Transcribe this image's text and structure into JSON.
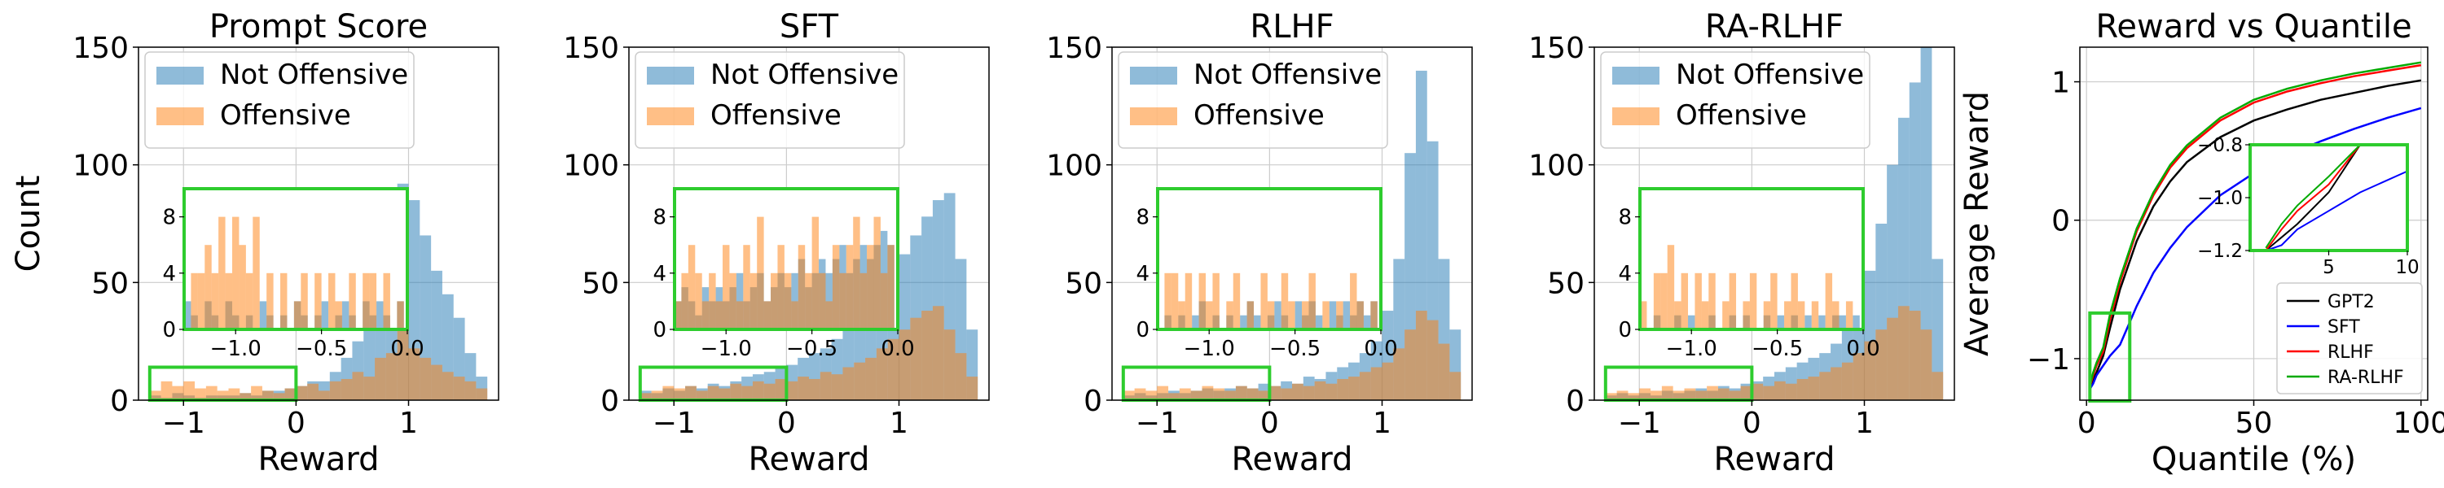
{
  "figure": {
    "colors": {
      "not_offensive": "#1f77b4",
      "offensive": "#ff7f0e",
      "inset_box": "#2ecc2e",
      "grid": "#cccccc"
    }
  },
  "chart_data": [
    {
      "type": "bar",
      "title": "Prompt Score",
      "xlabel": "Reward",
      "ylabel": "Count",
      "xlim": [
        -1.4,
        1.8
      ],
      "ylim": [
        0,
        150
      ],
      "xticks": [
        "−1",
        "0",
        "1"
      ],
      "yticks": [
        "0",
        "50",
        "100",
        "150"
      ],
      "grid": true,
      "legend": {
        "position": "top-left",
        "entries": [
          "Not Offensive",
          "Offensive"
        ]
      },
      "bin_start": -1.3,
      "bin_width": 0.1,
      "series": [
        {
          "name": "Not Offensive",
          "values": [
            2,
            1,
            3,
            2,
            1,
            2,
            2,
            2,
            3,
            2,
            4,
            4,
            5,
            6,
            8,
            8,
            12,
            18,
            25,
            35,
            60,
            68,
            92,
            85,
            70,
            55,
            45,
            35,
            20,
            10
          ]
        },
        {
          "name": "Offensive",
          "values": [
            4,
            8,
            6,
            8,
            5,
            6,
            4,
            5,
            3,
            6,
            4,
            3,
            5,
            6,
            7,
            4,
            8,
            9,
            12,
            10,
            18,
            20,
            30,
            22,
            18,
            15,
            12,
            10,
            8,
            5
          ]
        }
      ],
      "inset": {
        "xlim": [
          -1.3,
          0.0
        ],
        "ylim": [
          0,
          10
        ],
        "xticks": [
          "−1.0",
          "−0.5",
          "0.0"
        ],
        "yticks": [
          "0",
          "4",
          "8"
        ],
        "zoom_region": {
          "x": [
            -1.3,
            0.0
          ],
          "y": [
            0,
            14
          ]
        },
        "bin_width": 0.04,
        "series": [
          {
            "name": "Not Offensive",
            "values": [
              2,
              1,
              0,
              2,
              1,
              0,
              2,
              1,
              0,
              1,
              0,
              2,
              1,
              0,
              1,
              0,
              2,
              1,
              0,
              1,
              2,
              0,
              1,
              2,
              1,
              0,
              2,
              1,
              2,
              1,
              0,
              2,
              1
            ]
          },
          {
            "name": "Offensive",
            "values": [
              0,
              4,
              4,
              6,
              4,
              8,
              4,
              8,
              6,
              4,
              8,
              0,
              4,
              0,
              4,
              0,
              2,
              4,
              0,
              4,
              0,
              4,
              2,
              0,
              4,
              0,
              4,
              4,
              0,
              4,
              0,
              2,
              0
            ]
          }
        ]
      }
    },
    {
      "type": "bar",
      "title": "SFT",
      "xlabel": "Reward",
      "ylabel": "",
      "xlim": [
        -1.4,
        1.8
      ],
      "ylim": [
        0,
        150
      ],
      "xticks": [
        "−1",
        "0",
        "1"
      ],
      "yticks": [
        "0",
        "50",
        "100",
        "150"
      ],
      "grid": true,
      "legend": {
        "position": "top-left",
        "entries": [
          "Not Offensive",
          "Offensive"
        ]
      },
      "bin_start": -1.3,
      "bin_width": 0.1,
      "series": [
        {
          "name": "Not Offensive",
          "values": [
            4,
            3,
            5,
            4,
            6,
            5,
            7,
            6,
            8,
            10,
            11,
            12,
            14,
            15,
            18,
            20,
            22,
            26,
            30,
            35,
            40,
            48,
            55,
            62,
            70,
            78,
            85,
            88,
            60,
            30
          ]
        },
        {
          "name": "Offensive",
          "values": [
            3,
            4,
            6,
            5,
            6,
            4,
            6,
            5,
            7,
            6,
            8,
            7,
            9,
            8,
            10,
            9,
            12,
            11,
            14,
            16,
            18,
            22,
            26,
            30,
            35,
            38,
            40,
            30,
            20,
            10
          ]
        }
      ],
      "inset": {
        "xlim": [
          -1.3,
          0.0
        ],
        "ylim": [
          0,
          10
        ],
        "xticks": [
          "−1.0",
          "−0.5",
          "0.0"
        ],
        "yticks": [
          "0",
          "4",
          "8"
        ],
        "zoom_region": {
          "x": [
            -1.3,
            0.0
          ],
          "y": [
            0,
            14
          ]
        },
        "bin_width": 0.04,
        "series": [
          {
            "name": "Not Offensive",
            "values": [
              2,
              3,
              2,
              1,
              3,
              2,
              3,
              2,
              3,
              4,
              2,
              3,
              4,
              2,
              3,
              4,
              3,
              4,
              5,
              3,
              4,
              5,
              4,
              5,
              6,
              4,
              5,
              6,
              5,
              6,
              7,
              6,
              7
            ]
          },
          {
            "name": "Offensive",
            "values": [
              2,
              4,
              6,
              4,
              2,
              4,
              2,
              6,
              4,
              2,
              6,
              4,
              8,
              2,
              4,
              6,
              4,
              2,
              6,
              4,
              8,
              4,
              2,
              6,
              4,
              6,
              8,
              4,
              6,
              8,
              4,
              6,
              4
            ]
          }
        ]
      }
    },
    {
      "type": "bar",
      "title": "RLHF",
      "xlabel": "Reward",
      "ylabel": "",
      "xlim": [
        -1.4,
        1.8
      ],
      "ylim": [
        0,
        150
      ],
      "xticks": [
        "−1",
        "0",
        "1"
      ],
      "yticks": [
        "0",
        "50",
        "100",
        "150"
      ],
      "grid": true,
      "legend": {
        "position": "top-left",
        "entries": [
          "Not Offensive",
          "Offensive"
        ]
      },
      "bin_start": -1.3,
      "bin_width": 0.1,
      "series": [
        {
          "name": "Not Offensive",
          "values": [
            2,
            3,
            2,
            3,
            4,
            3,
            4,
            5,
            4,
            5,
            6,
            5,
            7,
            6,
            8,
            7,
            10,
            9,
            12,
            14,
            16,
            20,
            25,
            38,
            60,
            105,
            140,
            110,
            60,
            30
          ]
        },
        {
          "name": "Offensive",
          "values": [
            4,
            5,
            4,
            6,
            3,
            5,
            4,
            6,
            5,
            4,
            6,
            5,
            4,
            6,
            5,
            7,
            6,
            8,
            7,
            9,
            10,
            12,
            14,
            16,
            22,
            30,
            38,
            34,
            24,
            12
          ]
        }
      ],
      "inset": {
        "xlim": [
          -1.3,
          0.0
        ],
        "ylim": [
          0,
          10
        ],
        "xticks": [
          "−1.0",
          "−0.5",
          "0.0"
        ],
        "yticks": [
          "0",
          "4",
          "8"
        ],
        "zoom_region": {
          "x": [
            -1.3,
            0.0
          ],
          "y": [
            0,
            14
          ]
        },
        "bin_width": 0.04,
        "series": [
          {
            "name": "Not Offensive",
            "values": [
              0,
              1,
              0,
              1,
              0,
              1,
              2,
              0,
              1,
              0,
              1,
              0,
              1,
              2,
              1,
              0,
              1,
              2,
              1,
              0,
              2,
              1,
              2,
              1,
              0,
              2,
              1,
              2,
              1,
              2,
              1,
              2,
              1
            ]
          },
          {
            "name": "Offensive",
            "values": [
              0,
              4,
              4,
              2,
              4,
              0,
              4,
              2,
              4,
              0,
              2,
              4,
              0,
              2,
              0,
              4,
              2,
              0,
              4,
              2,
              0,
              2,
              4,
              0,
              2,
              0,
              2,
              0,
              4,
              2,
              0,
              2,
              0
            ]
          }
        ]
      }
    },
    {
      "type": "bar",
      "title": "RA-RLHF",
      "xlabel": "Reward",
      "ylabel": "",
      "xlim": [
        -1.4,
        1.8
      ],
      "ylim": [
        0,
        150
      ],
      "xticks": [
        "−1",
        "0",
        "1"
      ],
      "yticks": [
        "0",
        "50",
        "100",
        "150"
      ],
      "grid": true,
      "legend": {
        "position": "top-left",
        "entries": [
          "Not Offensive",
          "Offensive"
        ]
      },
      "bin_start": -1.3,
      "bin_width": 0.1,
      "series": [
        {
          "name": "Not Offensive",
          "values": [
            2,
            3,
            2,
            3,
            2,
            4,
            3,
            4,
            5,
            4,
            6,
            5,
            7,
            8,
            10,
            12,
            14,
            16,
            18,
            20,
            24,
            30,
            40,
            55,
            75,
            100,
            120,
            135,
            150,
            60
          ]
        },
        {
          "name": "Offensive",
          "values": [
            3,
            4,
            3,
            5,
            4,
            6,
            4,
            5,
            4,
            6,
            5,
            4,
            6,
            7,
            6,
            8,
            7,
            9,
            10,
            12,
            14,
            16,
            20,
            25,
            30,
            35,
            40,
            38,
            30,
            12
          ]
        }
      ],
      "inset": {
        "xlim": [
          -1.3,
          0.0
        ],
        "ylim": [
          0,
          10
        ],
        "xticks": [
          "−1.0",
          "−0.5",
          "0.0"
        ],
        "yticks": [
          "0",
          "4",
          "8"
        ],
        "zoom_region": {
          "x": [
            -1.3,
            0.0
          ],
          "y": [
            0,
            14
          ]
        },
        "bin_width": 0.04,
        "series": [
          {
            "name": "Not Offensive",
            "values": [
              0,
              0,
              1,
              0,
              0,
              1,
              0,
              1,
              0,
              0,
              1,
              0,
              0,
              1,
              0,
              1,
              0,
              0,
              1,
              0,
              1,
              0,
              1,
              0,
              1,
              0,
              1,
              0,
              1,
              1,
              0,
              1,
              0
            ]
          },
          {
            "name": "Offensive",
            "values": [
              2,
              0,
              4,
              4,
              6,
              2,
              4,
              0,
              4,
              2,
              4,
              0,
              2,
              4,
              0,
              2,
              4,
              0,
              2,
              4,
              0,
              2,
              4,
              2,
              0,
              2,
              0,
              4,
              2,
              0,
              2,
              0,
              2
            ]
          }
        ]
      }
    },
    {
      "type": "line",
      "title": "Reward vs Quantile",
      "xlabel": "Quantile (%)",
      "ylabel": "Average Reward",
      "xlim": [
        -2,
        102
      ],
      "ylim": [
        -1.3,
        1.25
      ],
      "xticks": [
        "0",
        "50",
        "100"
      ],
      "yticks": [
        "−1",
        "0",
        "1"
      ],
      "grid": true,
      "legend": {
        "position": "lower-right",
        "entries": [
          "GPT2",
          "SFT",
          "RLHF",
          "RA-RLHF"
        ]
      },
      "x": [
        1,
        2,
        3,
        5,
        7,
        10,
        15,
        20,
        25,
        30,
        40,
        50,
        60,
        70,
        80,
        90,
        100
      ],
      "series": [
        {
          "name": "GPT2",
          "color": "#000000",
          "values": [
            -1.2,
            -1.15,
            -1.1,
            -0.98,
            -0.78,
            -0.5,
            -0.15,
            0.1,
            0.28,
            0.42,
            0.6,
            0.72,
            0.8,
            0.87,
            0.92,
            0.97,
            1.01
          ]
        },
        {
          "name": "SFT",
          "color": "#0000ff",
          "values": [
            -1.22,
            -1.18,
            -1.12,
            -1.05,
            -0.98,
            -0.9,
            -0.62,
            -0.38,
            -0.2,
            -0.05,
            0.18,
            0.34,
            0.47,
            0.57,
            0.66,
            0.74,
            0.81
          ]
        },
        {
          "name": "RLHF",
          "color": "#ff0000",
          "values": [
            -1.2,
            -1.12,
            -1.05,
            -0.95,
            -0.72,
            -0.45,
            -0.08,
            0.18,
            0.38,
            0.52,
            0.72,
            0.85,
            0.93,
            0.99,
            1.04,
            1.08,
            1.12
          ]
        },
        {
          "name": "RA-RLHF",
          "color": "#00aa00",
          "values": [
            -1.19,
            -1.1,
            -1.03,
            -0.92,
            -0.68,
            -0.42,
            -0.06,
            0.2,
            0.4,
            0.54,
            0.74,
            0.87,
            0.95,
            1.01,
            1.06,
            1.1,
            1.14
          ]
        }
      ],
      "inset": {
        "xlim": [
          0,
          10
        ],
        "ylim": [
          -1.2,
          -0.8
        ],
        "xticks": [
          "5",
          "10"
        ],
        "yticks": [
          "−0.8",
          "−1.0",
          "−1.2"
        ],
        "zoom_region": {
          "x": [
            1,
            10
          ],
          "y": [
            -1.2,
            -0.8
          ]
        }
      }
    }
  ]
}
